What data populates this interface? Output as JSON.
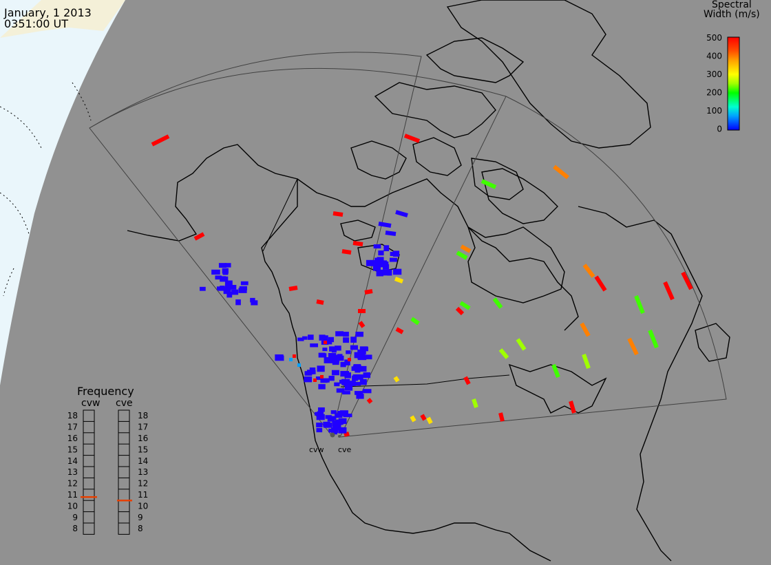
{
  "header": {
    "date": "January, 1 2013",
    "time": "0351:00 UT"
  },
  "colorbar": {
    "title_line1": "Spectral",
    "title_line2": "Width (m/s)",
    "ticks": [
      "500",
      "400",
      "300",
      "200",
      "100",
      "0"
    ],
    "colors": [
      "#0000ff",
      "#00a0ff",
      "#00ffd0",
      "#00ff00",
      "#a0ff00",
      "#ffff00",
      "#ffa000",
      "#ff5000",
      "#ff0000"
    ]
  },
  "frequency_panel": {
    "title": "Frequency",
    "left_label": "cvw",
    "right_label": "cve",
    "ticks": [
      "18",
      "17",
      "16",
      "15",
      "14",
      "13",
      "12",
      "11",
      "10",
      "9",
      "8"
    ],
    "cvw_frequency_mhz": 10.8,
    "cve_frequency_mhz": 10.5,
    "marker_color": "#e64000"
  },
  "radars": {
    "cvw": "cvw",
    "cve": "cve"
  },
  "colors": {
    "background": "#919191",
    "land_outline": "#000000",
    "night_region": "#e8f4fa",
    "scatter_low": "#2000ff",
    "scatter_high": "#ff0000"
  }
}
